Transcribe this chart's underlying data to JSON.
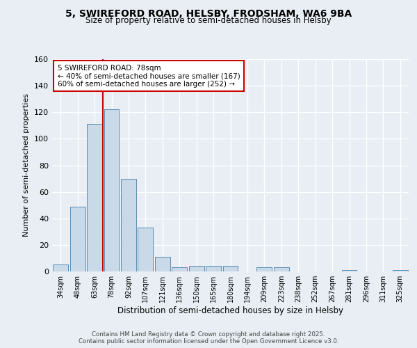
{
  "title_line1": "5, SWIREFORD ROAD, HELSBY, FRODSHAM, WA6 9BA",
  "title_line2": "Size of property relative to semi-detached houses in Helsby",
  "xlabel": "Distribution of semi-detached houses by size in Helsby",
  "ylabel": "Number of semi-detached properties",
  "categories": [
    "34sqm",
    "48sqm",
    "63sqm",
    "78sqm",
    "92sqm",
    "107sqm",
    "121sqm",
    "136sqm",
    "150sqm",
    "165sqm",
    "180sqm",
    "194sqm",
    "209sqm",
    "223sqm",
    "238sqm",
    "252sqm",
    "267sqm",
    "281sqm",
    "296sqm",
    "311sqm",
    "325sqm"
  ],
  "values": [
    5,
    49,
    111,
    122,
    70,
    33,
    11,
    3,
    4,
    4,
    4,
    0,
    3,
    3,
    0,
    0,
    0,
    1,
    0,
    0,
    1
  ],
  "bar_color": "#c9d9e8",
  "bar_edgecolor": "#5a8db5",
  "vline_index": 2.5,
  "vline_color": "#cc0000",
  "annotation_title": "5 SWIREFORD ROAD: 78sqm",
  "annotation_line1": "← 40% of semi-detached houses are smaller (167)",
  "annotation_line2": "60% of semi-detached houses are larger (252) →",
  "annotation_box_color": "#cc0000",
  "ylim": [
    0,
    160
  ],
  "yticks": [
    0,
    20,
    40,
    60,
    80,
    100,
    120,
    140,
    160
  ],
  "footer_line1": "Contains HM Land Registry data © Crown copyright and database right 2025.",
  "footer_line2": "Contains public sector information licensed under the Open Government Licence v3.0.",
  "bg_color": "#e8eef4",
  "plot_bg_color": "#e8eef4"
}
